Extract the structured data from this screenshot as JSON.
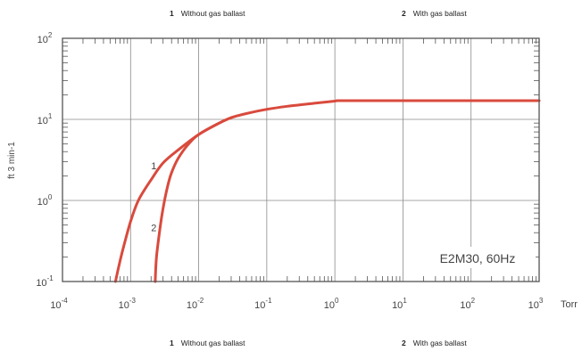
{
  "legend_top": [
    {
      "num": "1",
      "label": "Without gas ballast"
    },
    {
      "num": "2",
      "label": "With gas ballast"
    }
  ],
  "legend_bottom": [
    {
      "num": "1",
      "label": "Without gas ballast"
    },
    {
      "num": "2",
      "label": "With gas ballast"
    }
  ],
  "chart_data": {
    "type": "line",
    "x_scale": "log",
    "y_scale": "log",
    "xlim": [
      0.0001,
      1000
    ],
    "ylim": [
      0.1,
      100
    ],
    "x_ticks": [
      {
        "base": "10",
        "exp": "-4"
      },
      {
        "base": "10",
        "exp": "-3"
      },
      {
        "base": "10",
        "exp": "-2"
      },
      {
        "base": "10",
        "exp": "-1"
      },
      {
        "base": "10",
        "exp": "0"
      },
      {
        "base": "10",
        "exp": "1"
      },
      {
        "base": "10",
        "exp": "2"
      },
      {
        "base": "10",
        "exp": "3"
      }
    ],
    "y_ticks": [
      {
        "base": "10",
        "exp": "-1"
      },
      {
        "base": "10",
        "exp": "0"
      },
      {
        "base": "10",
        "exp": "1"
      },
      {
        "base": "10",
        "exp": "2"
      }
    ],
    "x_unit": "Torr",
    "y_label": "ft 3 min-1",
    "annotation": "E2M30, 60Hz",
    "grid": true,
    "line_color": "#d94a3d",
    "series": [
      {
        "name": "1",
        "x": [
          0.0006,
          0.0007,
          0.0008,
          0.001,
          0.0013,
          0.002,
          0.003,
          0.005,
          0.01,
          0.02,
          0.03,
          0.05,
          0.1,
          0.2,
          0.5,
          1,
          1.3,
          10,
          100,
          1000
        ],
        "y": [
          0.1,
          0.18,
          0.28,
          0.55,
          1.0,
          1.8,
          2.9,
          4.2,
          6.5,
          9.0,
          10.5,
          11.8,
          13.3,
          14.5,
          15.8,
          16.8,
          17.0,
          17.0,
          17.0,
          17.0
        ]
      },
      {
        "name": "2",
        "x": [
          0.0023,
          0.0024,
          0.0027,
          0.003,
          0.0035,
          0.004,
          0.005,
          0.007,
          0.01,
          0.02,
          0.03
        ],
        "y": [
          0.1,
          0.2,
          0.45,
          0.8,
          1.5,
          2.2,
          3.3,
          4.9,
          6.5,
          9.0,
          10.5
        ]
      }
    ],
    "curve_labels": [
      {
        "text": "1",
        "x": 0.0012,
        "y": 2.6
      },
      {
        "text": "2",
        "x": 0.0012,
        "y": 0.45
      }
    ]
  }
}
